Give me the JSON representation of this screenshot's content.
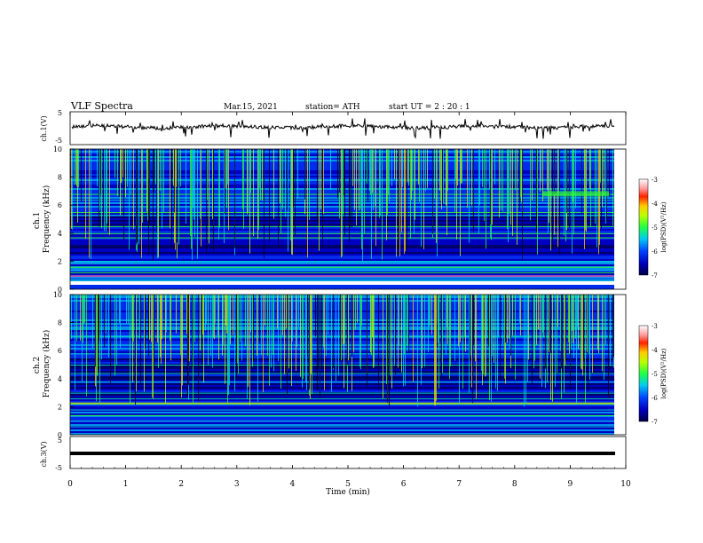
{
  "header": {
    "title": "VLF  Spectra",
    "date": "Mar.15, 2021",
    "station": "station= ATH",
    "start_ut": "start  UT  =   2  : 20 : 1"
  },
  "colors": {
    "colormap": [
      "#000066",
      "#0000cc",
      "#0033ff",
      "#00aaff",
      "#00e0d0",
      "#30ff30",
      "#c8ff00",
      "#ffd000",
      "#ff4000",
      "#ffffff"
    ],
    "trace": "#000000",
    "background": "#ffffff"
  },
  "chart_data": [
    {
      "type": "line",
      "panel": "ch1-waveform",
      "ylabel": "ch.1(V)",
      "yticks": [
        "5",
        "-5"
      ],
      "ylim": [
        -5,
        5
      ],
      "xlim": [
        0,
        10
      ],
      "series": [
        {
          "values": "noisy trace centred near 0 V with intermittent negative spikes",
          "mean": 0
        }
      ]
    },
    {
      "type": "heatmap",
      "panel": "ch1-spectrogram",
      "ylabel": "ch.1\nFrequency  (kHz)",
      "ylabel_lines": [
        "ch.1",
        "Frequency  (kHz)"
      ],
      "yticks": [
        "0",
        "2",
        "4",
        "6",
        "8",
        "10"
      ],
      "ylim": [
        0,
        10
      ],
      "xlim": [
        0,
        10
      ],
      "data_end_min": 9.8,
      "colorbar": {
        "label": "log(PSD)(V²/Hz)",
        "ticks": [
          "-3",
          "-4",
          "-5",
          "-6",
          "-7"
        ],
        "range": [
          -7,
          -3
        ]
      }
    },
    {
      "type": "heatmap",
      "panel": "ch2-spectrogram",
      "ylabel": "ch.2\nFrequency  (kHz)",
      "ylabel_lines": [
        "ch.2",
        "Frequency  (kHz)"
      ],
      "yticks": [
        "0",
        "2",
        "4",
        "6",
        "8",
        "10"
      ],
      "ylim": [
        0,
        10
      ],
      "xlim": [
        0,
        10
      ],
      "data_end_min": 9.8,
      "colorbar": {
        "label": "log(PSD)(V²/Hz)",
        "ticks": [
          "-3",
          "-4",
          "-5",
          "-6",
          "-7"
        ],
        "range": [
          -7,
          -3
        ]
      }
    },
    {
      "type": "line",
      "panel": "ch3-waveform",
      "ylabel": "ch.3(V)",
      "yticks": [
        "5",
        "-5"
      ],
      "ylim": [
        -5,
        5
      ],
      "xlim": [
        0,
        10
      ],
      "xlabel": "Time  (min)",
      "xticks": [
        "0",
        "1",
        "2",
        "3",
        "4",
        "5",
        "6",
        "7",
        "8",
        "9",
        "10"
      ],
      "series": [
        {
          "values": "flat thick trace",
          "mean": -1.8
        }
      ]
    }
  ]
}
